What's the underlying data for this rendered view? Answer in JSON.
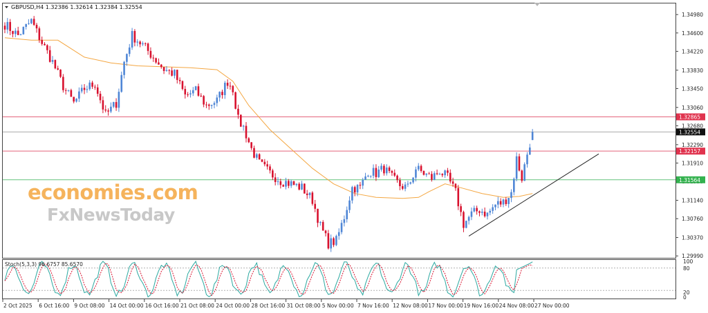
{
  "header": {
    "symbol_line": "GBPUSD,H4  1.32386 1.32614 1.32384 1.32554"
  },
  "watermark": {
    "line1": "economies.com",
    "line2": "FxNewsToday"
  },
  "colors": {
    "bull": "#4f86d6",
    "bear": "#d8112e",
    "ma": "#f4a640",
    "hline_red": "#e4637a",
    "hline_green": "#62c27c",
    "hline_gray": "#aaaaaa",
    "trendline": "#222222",
    "stoch_main": "#2aa8a0",
    "stoch_signal": "#d8112e",
    "wm_orange": "#f4a640",
    "wm_gray": "#c8c8c8"
  },
  "chart_data": {
    "type": "candlestick",
    "symbol": "GBPUSD",
    "timeframe": "H4",
    "ohlc_header": {
      "open": 1.32386,
      "high": 1.32614,
      "low": 1.32384,
      "close": 1.32554
    },
    "y_ticks": [
      "1.34980",
      "1.34600",
      "1.34220",
      "1.33830",
      "1.33450",
      "1.33060",
      "1.32680",
      "1.32290",
      "1.31910",
      "1.31530",
      "1.31140",
      "1.30760",
      "1.30370",
      "1.29990"
    ],
    "ylim": [
      1.2995,
      1.3521
    ],
    "x_ticks": [
      "2 Oct 2025",
      "6 Oct 16:00",
      "9 Oct 08:00",
      "14 Oct 00:00",
      "16 Oct 16:00",
      "21 Oct 08:00",
      "24 Oct 00:00",
      "28 Oct 16:00",
      "31 Oct 08:00",
      "5 Nov 00:00",
      "7 Nov 16:00",
      "12 Nov 08:00",
      "17 Nov 00:00",
      "19 Nov 16:00",
      "24 Nov 08:00",
      "27 Nov 00:00"
    ],
    "price_labels": [
      {
        "value": 1.32865,
        "text": "1.32865",
        "style": "red"
      },
      {
        "value": 1.32554,
        "text": "1.32554",
        "style": "current"
      },
      {
        "value": 1.32157,
        "text": "1.32157",
        "style": "red"
      },
      {
        "value": 1.31564,
        "text": "1.31564",
        "style": "green"
      }
    ],
    "anchors": [
      [
        0,
        1.3478
      ],
      [
        5,
        1.3455
      ],
      [
        10,
        1.3485
      ],
      [
        14,
        1.344
      ],
      [
        18,
        1.34
      ],
      [
        22,
        1.335
      ],
      [
        26,
        1.3315
      ],
      [
        30,
        1.3345
      ],
      [
        34,
        1.3355
      ],
      [
        38,
        1.329
      ],
      [
        42,
        1.3315
      ],
      [
        45,
        1.34
      ],
      [
        48,
        1.3455
      ],
      [
        52,
        1.3435
      ],
      [
        56,
        1.341
      ],
      [
        60,
        1.3385
      ],
      [
        64,
        1.3375
      ],
      [
        68,
        1.333
      ],
      [
        72,
        1.334
      ],
      [
        76,
        1.331
      ],
      [
        80,
        1.332
      ],
      [
        84,
        1.336
      ],
      [
        86,
        1.3345
      ],
      [
        88,
        1.328
      ],
      [
        90,
        1.3265
      ],
      [
        93,
        1.322
      ],
      [
        96,
        1.319
      ],
      [
        100,
        1.317
      ],
      [
        104,
        1.3155
      ],
      [
        108,
        1.3148
      ],
      [
        112,
        1.314
      ],
      [
        116,
        1.3115
      ],
      [
        119,
        1.306
      ],
      [
        122,
        1.3025
      ],
      [
        125,
        1.303
      ],
      [
        128,
        1.308
      ],
      [
        131,
        1.314
      ],
      [
        134,
        1.314
      ],
      [
        137,
        1.3175
      ],
      [
        140,
        1.317
      ],
      [
        143,
        1.318
      ],
      [
        146,
        1.316
      ],
      [
        149,
        1.3145
      ],
      [
        152,
        1.314
      ],
      [
        155,
        1.318
      ],
      [
        158,
        1.317
      ],
      [
        161,
        1.316
      ],
      [
        164,
        1.3175
      ],
      [
        167,
        1.316
      ],
      [
        170,
        1.313
      ],
      [
        173,
        1.3065
      ],
      [
        176,
        1.3085
      ],
      [
        179,
        1.3095
      ],
      [
        182,
        1.3085
      ],
      [
        185,
        1.3105
      ],
      [
        188,
        1.311
      ],
      [
        191,
        1.313
      ],
      [
        193,
        1.32
      ],
      [
        195,
        1.316
      ],
      [
        197,
        1.321
      ],
      [
        199,
        1.3255
      ]
    ],
    "moving_average": [
      [
        0,
        1.345
      ],
      [
        10,
        1.3445
      ],
      [
        20,
        1.3445
      ],
      [
        30,
        1.341
      ],
      [
        40,
        1.3398
      ],
      [
        50,
        1.3392
      ],
      [
        60,
        1.339
      ],
      [
        70,
        1.3388
      ],
      [
        80,
        1.3384
      ],
      [
        86,
        1.336
      ],
      [
        92,
        1.331
      ],
      [
        100,
        1.326
      ],
      [
        108,
        1.322
      ],
      [
        116,
        1.318
      ],
      [
        124,
        1.3148
      ],
      [
        132,
        1.3128
      ],
      [
        140,
        1.312
      ],
      [
        150,
        1.3118
      ],
      [
        156,
        1.312
      ],
      [
        160,
        1.3132
      ],
      [
        166,
        1.3148
      ],
      [
        172,
        1.314
      ],
      [
        180,
        1.3128
      ],
      [
        188,
        1.312
      ],
      [
        194,
        1.3122
      ],
      [
        199,
        1.3128
      ]
    ],
    "trendline": [
      [
        175,
        1.304
      ],
      [
        224,
        1.321
      ]
    ],
    "stochastic": {
      "label": "Stoch(5,3,3) 96.6757 85.6570",
      "main": 96.6757,
      "signal": 85.657,
      "levels": [
        20,
        80
      ],
      "y_ticks": [
        "100",
        "80",
        "20",
        "0"
      ],
      "ylim": [
        0,
        100
      ]
    },
    "xlabel": "",
    "ylabel": ""
  }
}
